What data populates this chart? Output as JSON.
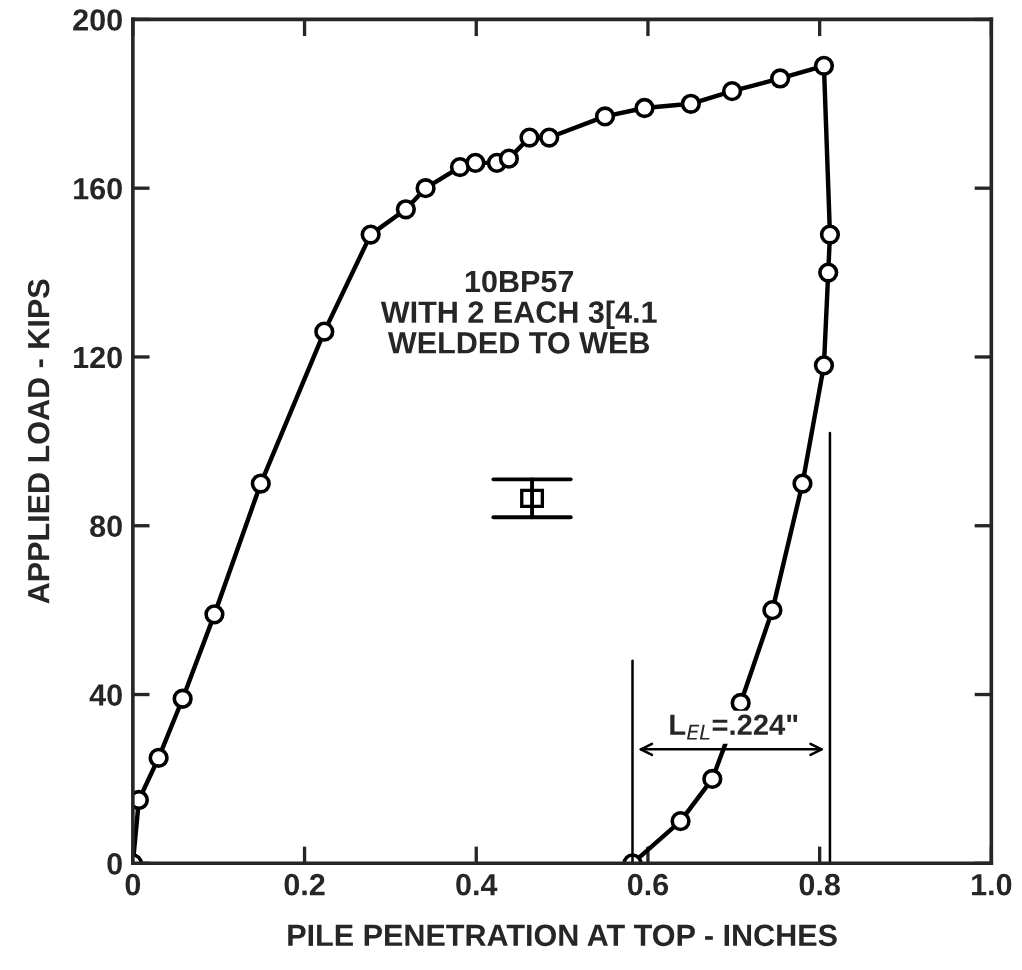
{
  "chart_data": {
    "type": "line",
    "xlabel": "PILE PENETRATION AT TOP - INCHES",
    "ylabel": "APPLIED LOAD - KIPS",
    "series": [
      {
        "color": "#000000",
        "x": [
          0,
          0.007,
          0.03,
          0.058,
          0.095,
          0.149,
          0.223,
          0.277,
          0.318,
          0.341,
          0.381,
          0.399,
          0.424,
          0.438,
          0.462,
          0.485,
          0.55,
          0.596,
          0.65,
          0.698,
          0.754,
          0.805,
          0.812,
          0.81,
          0.805,
          0.78,
          0.745,
          0.708,
          0.675,
          0.638,
          0.582
        ],
        "values": [
          0,
          15,
          25,
          39,
          59,
          90,
          126,
          149,
          155,
          160,
          165,
          166,
          166,
          167,
          172,
          172,
          177,
          179,
          180,
          183,
          186,
          189,
          149,
          140,
          118,
          90,
          60,
          38,
          20,
          10,
          0
        ]
      }
    ],
    "annotations": [
      "10BP57\nWITH 2 EACH 3[4.1\nWELDED TO WEB",
      "L$_{EL}$=.224\""
    ],
    "xlim": [
      0,
      1.0
    ],
    "ylim": [
      0,
      200
    ],
    "xticks": [
      0,
      0.2,
      0.4,
      0.6,
      0.8,
      {
        "value": 1.0,
        "label": "1.0"
      }
    ],
    "yticks": [
      0,
      40,
      80,
      120,
      160,
      200
    ],
    "grid": false,
    "legend": false,
    "marker": "circle",
    "line_style": "solid"
  }
}
